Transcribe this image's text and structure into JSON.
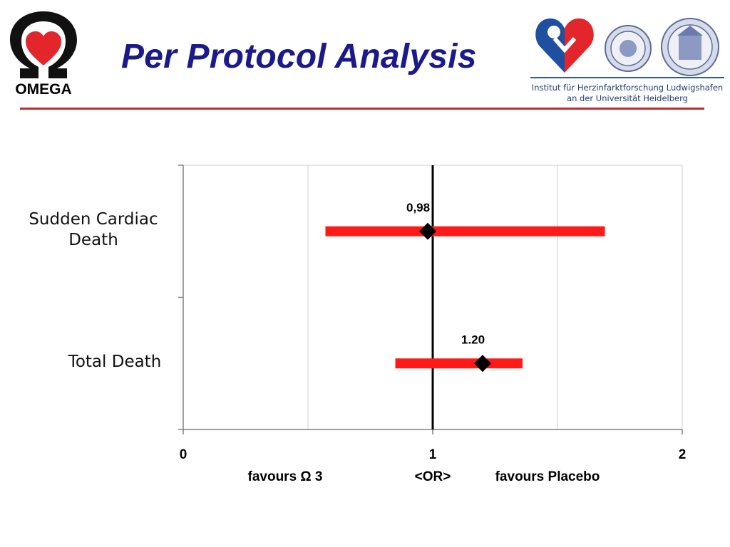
{
  "header": {
    "title": "Per Protocol Analysis",
    "omega_logo_text": "OMEGA",
    "institute_line_1": "Institut für Herzinfarktforschung Ludwigshafen",
    "institute_line_2": "an der Universität Heidelberg"
  },
  "colors": {
    "title": "#1a1a8c",
    "divider": "#c8282c",
    "ci_bar": "#ff1a1a",
    "marker": "#000000",
    "reference_line": "#000000",
    "grid": "#d0d0d0"
  },
  "chart_data": {
    "type": "forest",
    "title": "",
    "xlabel": "<OR>",
    "xlim": [
      0,
      2
    ],
    "xticks": [
      0,
      1,
      2
    ],
    "xtick_labels": [
      "0",
      "1",
      "2"
    ],
    "reference_value": 1,
    "vertical_gridlines": [
      0.5,
      1.5
    ],
    "left_annotation": "favours Ω 3",
    "right_annotation": "favours Placebo",
    "rows": [
      {
        "label": "Sudden Cardiac Death",
        "or": 0.98,
        "or_label": "0,98",
        "ci_low": 0.57,
        "ci_high": 1.69
      },
      {
        "label": "Total Death",
        "or": 1.2,
        "or_label": "1.20",
        "ci_low": 0.85,
        "ci_high": 1.36
      }
    ]
  }
}
